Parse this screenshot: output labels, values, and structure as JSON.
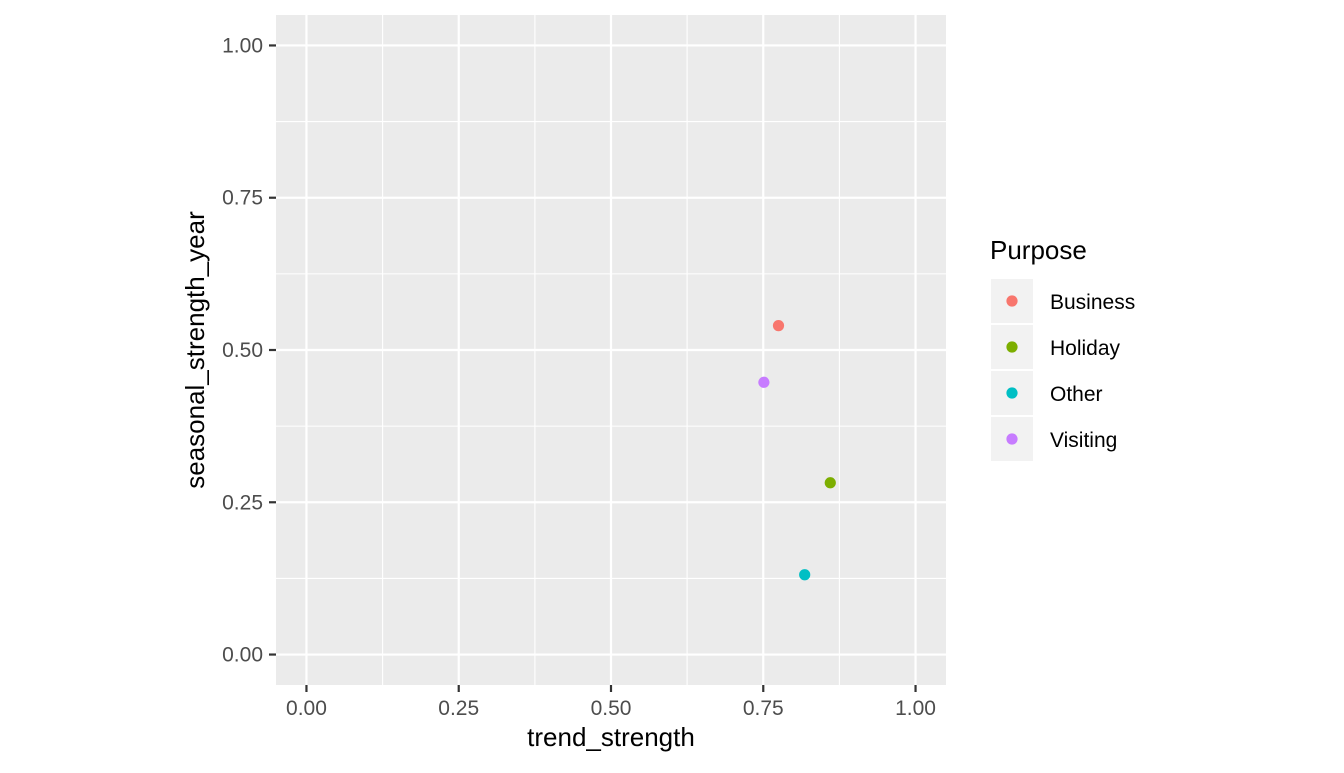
{
  "chart_data": {
    "type": "scatter",
    "title": "",
    "xlabel": "trend_strength",
    "ylabel": "seasonal_strength_year",
    "xlim": [
      -0.05,
      1.05
    ],
    "ylim": [
      -0.05,
      1.05
    ],
    "x_ticks": [
      "0.00",
      "0.25",
      "0.50",
      "0.75",
      "1.00"
    ],
    "y_ticks": [
      "0.00",
      "0.25",
      "0.50",
      "0.75",
      "1.00"
    ],
    "grid": true,
    "legend": {
      "title": "Purpose",
      "placement": "right",
      "entries": [
        "Business",
        "Holiday",
        "Other",
        "Visiting"
      ]
    },
    "series": [
      {
        "name": "Business",
        "color": "#F8766D",
        "points": [
          {
            "x": 0.775,
            "y": 0.54
          }
        ]
      },
      {
        "name": "Holiday",
        "color": "#7CAE00",
        "points": [
          {
            "x": 0.86,
            "y": 0.282
          }
        ]
      },
      {
        "name": "Other",
        "color": "#00BFC4",
        "points": [
          {
            "x": 0.818,
            "y": 0.131
          }
        ]
      },
      {
        "name": "Visiting",
        "color": "#C77CFF",
        "points": [
          {
            "x": 0.751,
            "y": 0.447
          }
        ]
      }
    ],
    "colors": {
      "panel_background": "#EBEBEB",
      "grid_major": "#FFFFFF",
      "tick_text": "#4D4D4D",
      "axis_title": "#000000",
      "legend_key_background": "#F2F2F2"
    }
  }
}
